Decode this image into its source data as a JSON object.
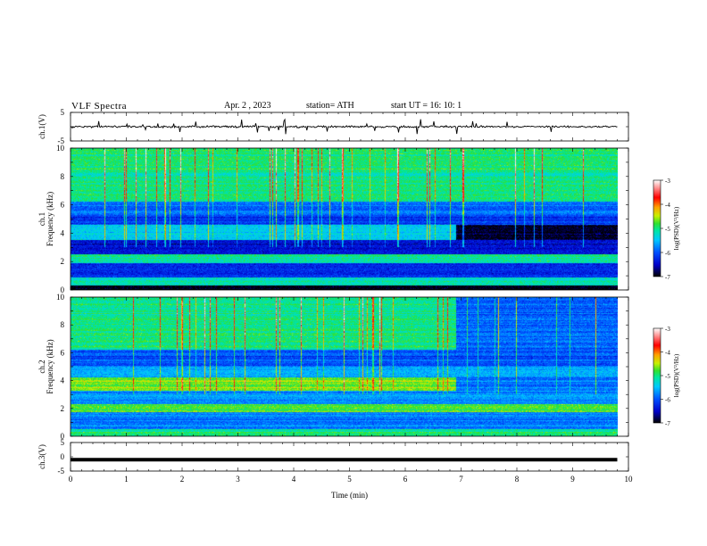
{
  "header": {
    "title": "VLF  Spectra",
    "date": "Apr. 2  , 2023",
    "station": "station= ATH",
    "start_ut": "start  UT  =    16: 10: 1"
  },
  "chart_data": [
    {
      "type": "line",
      "panel": "ch1-waveform",
      "ylabel": "ch.1(V)",
      "ylim": [
        -5,
        5
      ],
      "yticks": [
        "5",
        "-5"
      ],
      "xlim": [
        0,
        10
      ],
      "series": [
        {
          "x_range": [
            0,
            9.8
          ],
          "baseline": 0.0,
          "noise_amplitude": 0.6,
          "spike_amplitude": 2.5
        }
      ]
    },
    {
      "type": "heatmap",
      "panel": "ch1-spectrogram",
      "ylabel": "ch.1\nFrequency  (kHz)",
      "ylim": [
        0,
        10
      ],
      "yticks": [
        "0",
        "2",
        "4",
        "6",
        "8",
        "10"
      ],
      "xlim": [
        0,
        10
      ],
      "time_range": [
        0,
        9.8
      ],
      "value_range": [
        -7,
        -3
      ],
      "bands": [
        {
          "f_range": [
            0,
            0.3
          ],
          "t_range": [
            0,
            9.8
          ],
          "level": -7
        },
        {
          "f_range": [
            0.3,
            0.9
          ],
          "t_range": [
            0,
            9.8
          ],
          "level": -5.2
        },
        {
          "f_range": [
            0.9,
            1.9
          ],
          "t_range": [
            0,
            9.8
          ],
          "level": -6.3
        },
        {
          "f_range": [
            1.9,
            2.5
          ],
          "t_range": [
            0,
            9.8
          ],
          "level": -5.1
        },
        {
          "f_range": [
            2.5,
            3.5
          ],
          "t_range": [
            0,
            9.8
          ],
          "level": -6.4
        },
        {
          "f_range": [
            3.5,
            4.6
          ],
          "t_range": [
            0,
            6.9
          ],
          "level": -5.4
        },
        {
          "f_range": [
            3.5,
            4.6
          ],
          "t_range": [
            6.9,
            9.8
          ],
          "level": -6.9
        },
        {
          "f_range": [
            4.6,
            5.2
          ],
          "t_range": [
            0,
            9.8
          ],
          "level": -6.2
        },
        {
          "f_range": [
            5.2,
            6.2
          ],
          "t_range": [
            0,
            9.8
          ],
          "level": -5.9
        },
        {
          "f_range": [
            6.2,
            10
          ],
          "t_range": [
            0,
            9.8
          ],
          "level": -5.0
        }
      ],
      "colorbar": {
        "label": "log(PSD)(V²/Hz)",
        "ticks": [
          "-3",
          "-4",
          "-5",
          "-6",
          "-7"
        ]
      }
    },
    {
      "type": "heatmap",
      "panel": "ch2-spectrogram",
      "ylabel": "ch.2\nFrequency  (kHz)",
      "ylim": [
        0,
        10
      ],
      "yticks": [
        "0",
        "2",
        "4",
        "6",
        "8",
        "10"
      ],
      "xlim": [
        0,
        10
      ],
      "time_range": [
        0,
        9.8
      ],
      "value_range": [
        -7,
        -3
      ],
      "bands": [
        {
          "f_range": [
            0,
            0.5
          ],
          "t_range": [
            0,
            9.8
          ],
          "level": -5.0
        },
        {
          "f_range": [
            0.5,
            1.7
          ],
          "t_range": [
            0,
            9.8
          ],
          "level": -5.8
        },
        {
          "f_range": [
            1.7,
            2.3
          ],
          "t_range": [
            0,
            9.8
          ],
          "level": -4.8
        },
        {
          "f_range": [
            2.3,
            3.3
          ],
          "t_range": [
            0,
            9.8
          ],
          "level": -5.7
        },
        {
          "f_range": [
            3.3,
            4.2
          ],
          "t_range": [
            0,
            6.9
          ],
          "level": -4.7
        },
        {
          "f_range": [
            3.3,
            4.2
          ],
          "t_range": [
            6.9,
            9.8
          ],
          "level": -5.9
        },
        {
          "f_range": [
            4.2,
            5.0
          ],
          "t_range": [
            0,
            9.8
          ],
          "level": -5.6
        },
        {
          "f_range": [
            5.0,
            6.2
          ],
          "t_range": [
            0,
            9.8
          ],
          "level": -6.0
        },
        {
          "f_range": [
            6.2,
            10
          ],
          "t_range": [
            0,
            6.9
          ],
          "level": -5.0
        },
        {
          "f_range": [
            6.2,
            10
          ],
          "t_range": [
            6.9,
            9.8
          ],
          "level": -5.9
        }
      ],
      "colorbar": {
        "label": "log(PSD)(V²/Hz)",
        "ticks": [
          "-3",
          "-4",
          "-5",
          "-6",
          "-7"
        ]
      }
    },
    {
      "type": "line",
      "panel": "ch3-waveform",
      "ylabel": "ch.3(V)",
      "ylim": [
        -5,
        5
      ],
      "yticks": [
        "5",
        "0",
        "-5"
      ],
      "xlim": [
        0,
        10
      ],
      "xlabel": "Time  (min)",
      "xticks": [
        "0",
        "1",
        "2",
        "3",
        "4",
        "5",
        "6",
        "7",
        "8",
        "9",
        "10"
      ],
      "series": [
        {
          "x_range": [
            0,
            9.8
          ],
          "baseline": -1.0,
          "noise_amplitude": 0.0
        }
      ]
    }
  ],
  "colors": {
    "colormap": [
      "#000000",
      "#0000c8",
      "#0050ff",
      "#00c8ff",
      "#00e6a0",
      "#30e030",
      "#c8f000",
      "#ffa000",
      "#ff0000",
      "#ff9090",
      "#ffffff"
    ]
  }
}
